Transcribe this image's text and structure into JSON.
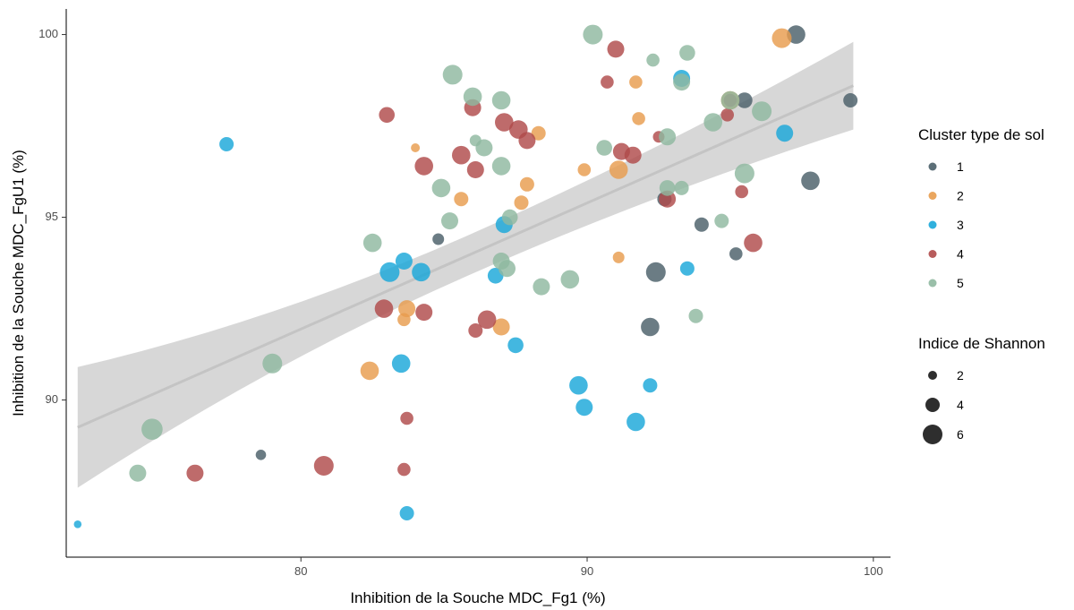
{
  "chart_data": {
    "type": "scatter",
    "xlabel": "Inhibition de la Souche MDC_Fg1 (%)",
    "ylabel": "Inhibition de la Souche MDC_FgU1 (%)",
    "xlim": [
      71.8,
      100.6
    ],
    "ylim": [
      85.7,
      100.7
    ],
    "x_ticks": [
      80,
      90,
      100
    ],
    "y_ticks": [
      90,
      95,
      100
    ],
    "x_tick_labels": [
      "80",
      "90",
      "100"
    ],
    "y_tick_labels": [
      "90",
      "95",
      "100"
    ],
    "grid": false,
    "legend_position": "right",
    "trend": {
      "method": "linear regression with confidence band",
      "x_range": [
        72.2,
        99.3
      ],
      "fit_start": 89.25,
      "fit_end": 98.6,
      "band_start": [
        87.6,
        90.9
      ],
      "band_end": [
        97.4,
        99.8
      ]
    },
    "legends": {
      "color": {
        "title": "Cluster type de sol",
        "items": [
          {
            "label": "1",
            "color": "#4a5f69"
          },
          {
            "label": "2",
            "color": "#e89c4e"
          },
          {
            "label": "3",
            "color": "#1aa7d9"
          },
          {
            "label": "4",
            "color": "#b04a4a"
          },
          {
            "label": "5",
            "color": "#8fb8a0"
          }
        ]
      },
      "size": {
        "title": "Indice de Shannon",
        "items": [
          {
            "label": "2",
            "value": 2
          },
          {
            "label": "4",
            "value": 4
          },
          {
            "label": "6",
            "value": 6
          }
        ]
      }
    },
    "series": [
      {
        "name": "1",
        "points": [
          {
            "x": 97.3,
            "y": 100.0,
            "s": 5.5
          },
          {
            "x": 95.5,
            "y": 98.2,
            "s": 4.5
          },
          {
            "x": 99.2,
            "y": 98.2,
            "s": 4.0
          },
          {
            "x": 97.8,
            "y": 96.0,
            "s": 5.5
          },
          {
            "x": 92.7,
            "y": 95.5,
            "s": 4.0
          },
          {
            "x": 94.0,
            "y": 94.8,
            "s": 4.0
          },
          {
            "x": 84.8,
            "y": 94.4,
            "s": 3.0
          },
          {
            "x": 95.2,
            "y": 94.0,
            "s": 3.5
          },
          {
            "x": 92.4,
            "y": 93.5,
            "s": 6.0
          },
          {
            "x": 92.2,
            "y": 92.0,
            "s": 5.5
          },
          {
            "x": 78.6,
            "y": 88.5,
            "s": 2.5
          }
        ]
      },
      {
        "name": "2",
        "points": [
          {
            "x": 96.8,
            "y": 99.9,
            "s": 6.0
          },
          {
            "x": 91.7,
            "y": 98.7,
            "s": 3.5
          },
          {
            "x": 95.0,
            "y": 98.2,
            "s": 5.5
          },
          {
            "x": 91.8,
            "y": 97.7,
            "s": 3.5
          },
          {
            "x": 88.3,
            "y": 97.3,
            "s": 4.0
          },
          {
            "x": 84.0,
            "y": 96.9,
            "s": 2.0
          },
          {
            "x": 89.9,
            "y": 96.3,
            "s": 3.5
          },
          {
            "x": 91.1,
            "y": 96.3,
            "s": 5.5
          },
          {
            "x": 87.9,
            "y": 95.9,
            "s": 4.0
          },
          {
            "x": 85.6,
            "y": 95.5,
            "s": 4.0
          },
          {
            "x": 87.7,
            "y": 95.4,
            "s": 4.0
          },
          {
            "x": 91.1,
            "y": 93.9,
            "s": 3.0
          },
          {
            "x": 83.7,
            "y": 92.5,
            "s": 5.0
          },
          {
            "x": 83.6,
            "y": 92.2,
            "s": 3.5
          },
          {
            "x": 87.0,
            "y": 92.0,
            "s": 5.0
          },
          {
            "x": 82.4,
            "y": 90.8,
            "s": 5.5
          }
        ]
      },
      {
        "name": "3",
        "points": [
          {
            "x": 93.3,
            "y": 98.8,
            "s": 5.0
          },
          {
            "x": 96.9,
            "y": 97.3,
            "s": 5.0
          },
          {
            "x": 77.4,
            "y": 97.0,
            "s": 4.0
          },
          {
            "x": 87.1,
            "y": 94.8,
            "s": 5.0
          },
          {
            "x": 83.6,
            "y": 93.8,
            "s": 5.0
          },
          {
            "x": 83.1,
            "y": 93.5,
            "s": 6.0
          },
          {
            "x": 84.2,
            "y": 93.5,
            "s": 5.5
          },
          {
            "x": 93.5,
            "y": 93.6,
            "s": 4.0
          },
          {
            "x": 86.8,
            "y": 93.4,
            "s": 4.5
          },
          {
            "x": 87.5,
            "y": 91.5,
            "s": 4.5
          },
          {
            "x": 83.5,
            "y": 91.0,
            "s": 5.5
          },
          {
            "x": 89.7,
            "y": 90.4,
            "s": 5.5
          },
          {
            "x": 89.9,
            "y": 89.8,
            "s": 5.0
          },
          {
            "x": 92.2,
            "y": 90.4,
            "s": 4.0
          },
          {
            "x": 91.7,
            "y": 89.4,
            "s": 5.5
          },
          {
            "x": 83.7,
            "y": 86.9,
            "s": 4.0
          },
          {
            "x": 72.2,
            "y": 86.6,
            "s": 1.5
          }
        ]
      },
      {
        "name": "4",
        "points": [
          {
            "x": 91.0,
            "y": 99.6,
            "s": 5.0
          },
          {
            "x": 90.7,
            "y": 98.7,
            "s": 3.5
          },
          {
            "x": 95.0,
            "y": 98.2,
            "s": 3.5
          },
          {
            "x": 83.0,
            "y": 97.8,
            "s": 4.5
          },
          {
            "x": 86.0,
            "y": 98.0,
            "s": 5.0
          },
          {
            "x": 87.1,
            "y": 97.6,
            "s": 5.5
          },
          {
            "x": 87.6,
            "y": 97.4,
            "s": 5.5
          },
          {
            "x": 87.9,
            "y": 97.1,
            "s": 5.0
          },
          {
            "x": 94.9,
            "y": 97.8,
            "s": 3.5
          },
          {
            "x": 92.5,
            "y": 97.2,
            "s": 3.0
          },
          {
            "x": 91.2,
            "y": 96.8,
            "s": 5.0
          },
          {
            "x": 91.6,
            "y": 96.7,
            "s": 5.0
          },
          {
            "x": 85.6,
            "y": 96.7,
            "s": 5.5
          },
          {
            "x": 86.1,
            "y": 96.3,
            "s": 5.0
          },
          {
            "x": 84.3,
            "y": 96.4,
            "s": 5.5
          },
          {
            "x": 95.4,
            "y": 95.7,
            "s": 3.5
          },
          {
            "x": 92.8,
            "y": 95.5,
            "s": 5.0
          },
          {
            "x": 95.8,
            "y": 94.3,
            "s": 5.5
          },
          {
            "x": 82.9,
            "y": 92.5,
            "s": 5.5
          },
          {
            "x": 84.3,
            "y": 92.4,
            "s": 5.0
          },
          {
            "x": 86.5,
            "y": 92.2,
            "s": 5.5
          },
          {
            "x": 86.1,
            "y": 91.9,
            "s": 4.0
          },
          {
            "x": 83.7,
            "y": 89.5,
            "s": 3.5
          },
          {
            "x": 83.6,
            "y": 88.1,
            "s": 3.5
          },
          {
            "x": 80.8,
            "y": 88.2,
            "s": 6.0
          },
          {
            "x": 76.3,
            "y": 88.0,
            "s": 5.0
          }
        ]
      },
      {
        "name": "5",
        "points": [
          {
            "x": 90.2,
            "y": 100.0,
            "s": 6.0
          },
          {
            "x": 92.3,
            "y": 99.3,
            "s": 3.5
          },
          {
            "x": 93.5,
            "y": 99.5,
            "s": 4.5
          },
          {
            "x": 85.3,
            "y": 98.9,
            "s": 6.0
          },
          {
            "x": 93.3,
            "y": 98.7,
            "s": 5.0
          },
          {
            "x": 86.0,
            "y": 98.3,
            "s": 5.5
          },
          {
            "x": 87.0,
            "y": 98.2,
            "s": 5.5
          },
          {
            "x": 95.0,
            "y": 98.2,
            "s": 5.5
          },
          {
            "x": 96.1,
            "y": 97.9,
            "s": 6.0
          },
          {
            "x": 94.4,
            "y": 97.6,
            "s": 5.5
          },
          {
            "x": 86.1,
            "y": 97.1,
            "s": 3.0
          },
          {
            "x": 92.8,
            "y": 97.2,
            "s": 5.0
          },
          {
            "x": 86.4,
            "y": 96.9,
            "s": 5.0
          },
          {
            "x": 90.6,
            "y": 96.9,
            "s": 4.5
          },
          {
            "x": 87.0,
            "y": 96.4,
            "s": 5.5
          },
          {
            "x": 95.5,
            "y": 96.2,
            "s": 6.0
          },
          {
            "x": 84.9,
            "y": 95.8,
            "s": 5.5
          },
          {
            "x": 92.8,
            "y": 95.8,
            "s": 4.5
          },
          {
            "x": 93.3,
            "y": 95.8,
            "s": 4.0
          },
          {
            "x": 85.2,
            "y": 94.9,
            "s": 5.0
          },
          {
            "x": 87.3,
            "y": 95.0,
            "s": 4.5
          },
          {
            "x": 94.7,
            "y": 94.9,
            "s": 4.0
          },
          {
            "x": 82.5,
            "y": 94.3,
            "s": 5.5
          },
          {
            "x": 87.0,
            "y": 93.8,
            "s": 5.0
          },
          {
            "x": 87.2,
            "y": 93.6,
            "s": 5.0
          },
          {
            "x": 89.4,
            "y": 93.3,
            "s": 5.5
          },
          {
            "x": 88.4,
            "y": 93.1,
            "s": 5.0
          },
          {
            "x": 93.8,
            "y": 92.3,
            "s": 4.0
          },
          {
            "x": 79.0,
            "y": 91.0,
            "s": 6.0
          },
          {
            "x": 74.8,
            "y": 89.2,
            "s": 6.5
          },
          {
            "x": 74.3,
            "y": 88.0,
            "s": 5.0
          }
        ]
      }
    ]
  }
}
